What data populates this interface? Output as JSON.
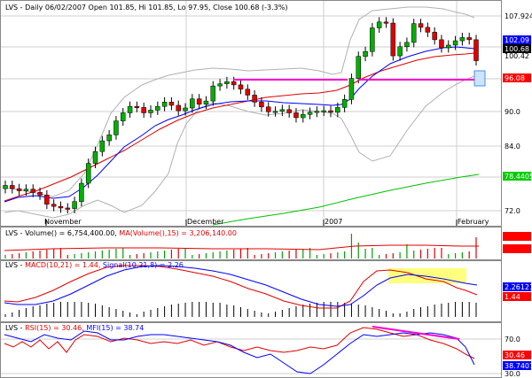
{
  "panels": {
    "price": {
      "header": "LVS - Daily 06/02/2007 Open 101.85, Hi 101.85, Lo 97.95, Close 100.68 (-3.3%)",
      "y_ticks": [
        "107.924",
        "100.42",
        "96.08",
        "90.0",
        "84.0",
        "78.4405",
        "72.0"
      ],
      "current_tags": [
        {
          "text": "102.09",
          "bg": "#0000ff"
        },
        {
          "text": "100.68",
          "bg": "#000000"
        },
        {
          "text": "96.08",
          "bg": "#ff0000"
        },
        {
          "text": "78.4405",
          "bg": "#00cc00"
        }
      ],
      "x_labels": [
        "November",
        "December",
        "2007",
        "February"
      ]
    },
    "volume": {
      "header_lvs": "LVS - ",
      "header_vol": "Volume() = 6,754,400.00, ",
      "header_ma": "MA(Volume(),15) = 3,206,140.00"
    },
    "macd": {
      "header_lvs": "LVS - ",
      "header_macd": "MACD(10,21) = 1.44, ",
      "header_signal": "Signal(10,21,8) = 2.26",
      "tags": [
        {
          "text": "2.26121",
          "bg": "#0000ff"
        },
        {
          "text": "1.44",
          "bg": "#ff0000"
        }
      ]
    },
    "rsi": {
      "header_lvs": "LVS - ",
      "header_rsi": "RSI(15) = 30.46, ",
      "header_mfi": "MFI(15) = 38.74",
      "y_ticks": [
        "70.0",
        "30.0"
      ],
      "tags": [
        {
          "text": "30.46",
          "bg": "#ff0000"
        },
        {
          "text": "38.7407",
          "bg": "#0000ff"
        }
      ]
    }
  },
  "chart_data": {
    "type": "candlestick",
    "ticker": "LVS",
    "ylim": [
      70,
      111
    ],
    "series": [
      {
        "name": "price",
        "values": [
          77.5,
          76.9,
          76.5,
          76.8,
          76.2,
          75.7,
          74.0,
          73.6,
          73.3,
          73.2,
          74.5,
          77.9,
          81.6,
          83.8,
          85.8,
          86.9,
          89.5,
          91.0,
          92.2,
          92.0,
          91.0,
          91.5,
          92.2,
          93.0,
          92.4,
          91.4,
          91.9,
          93.6,
          92.6,
          93.2,
          96.0,
          96.4,
          96.8,
          96.2,
          95.4,
          94.3,
          93.0,
          92.1,
          91.2,
          91.3,
          91.6,
          91.0,
          90.1,
          90.7,
          91.1,
          91.3,
          91.4,
          91.1,
          92.0,
          93.5,
          97.4,
          101.5,
          102.4,
          106.8,
          107.9,
          107.7,
          101.6,
          103.3,
          104.1,
          107.6,
          106.9,
          106.0,
          104.6,
          103.1,
          103.6,
          104.4,
          105.0,
          104.6,
          100.7
        ]
      }
    ]
  }
}
